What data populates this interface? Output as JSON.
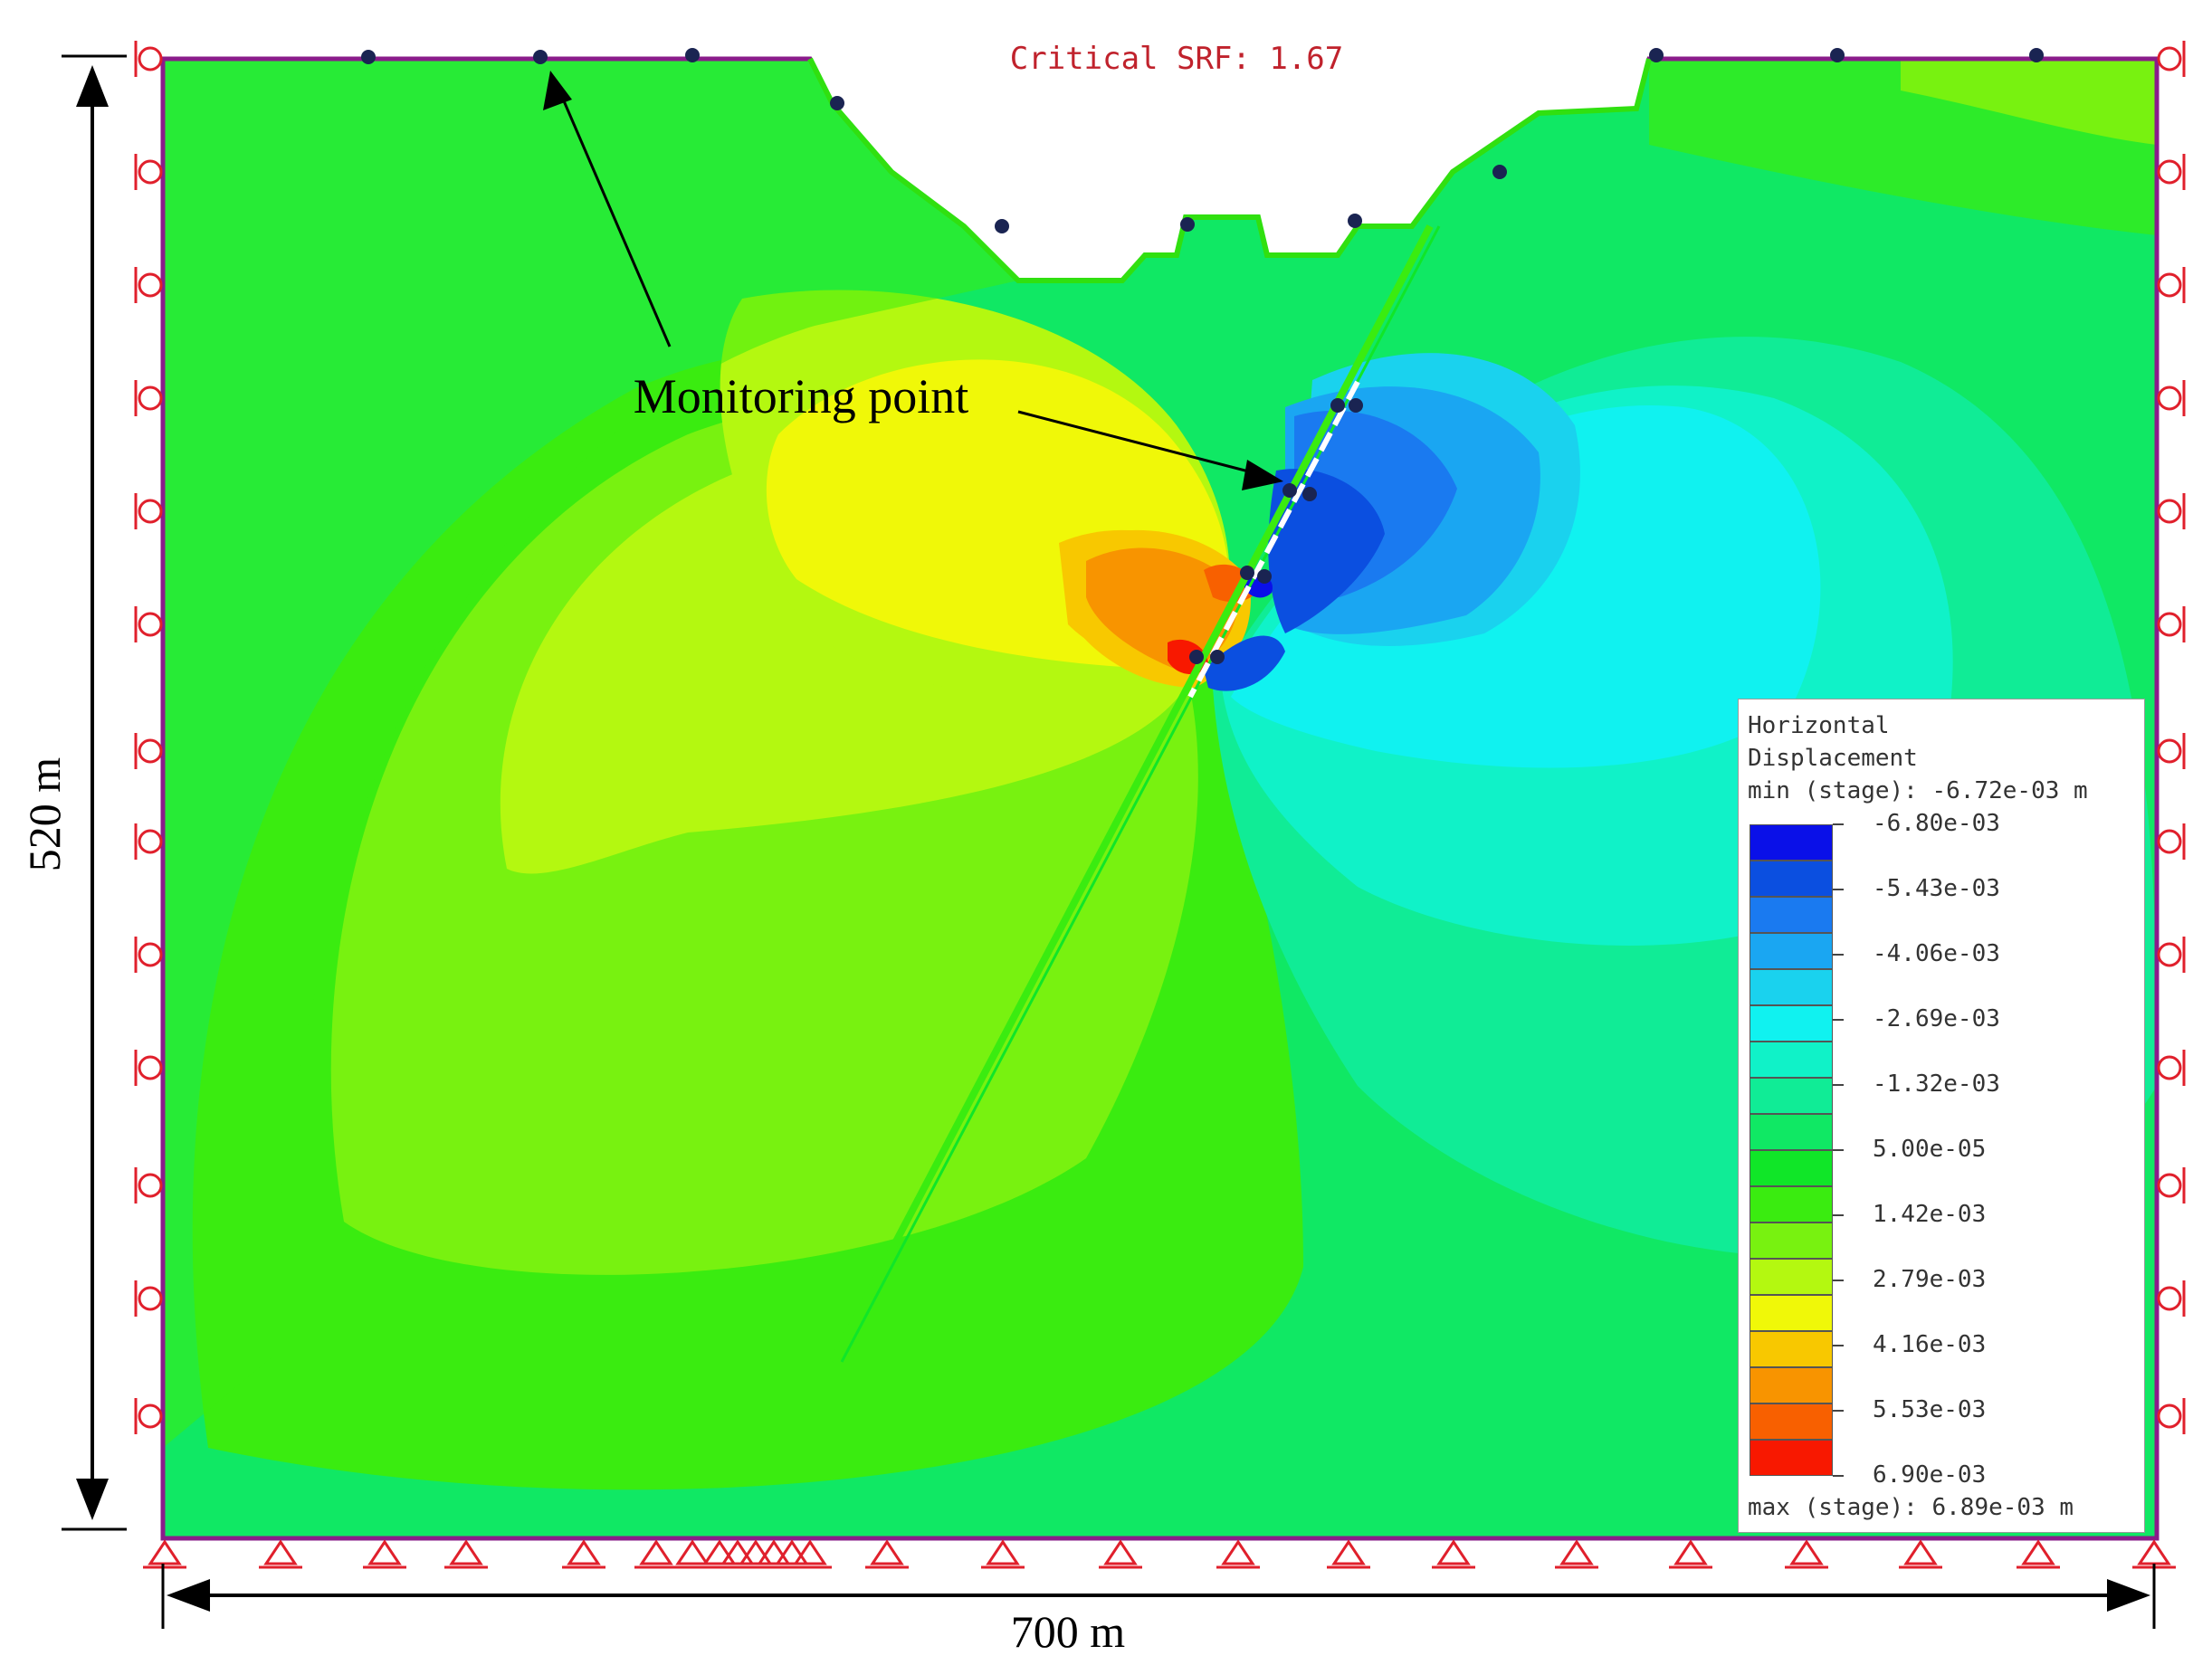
{
  "title": "Critical SRF: 1.67",
  "dimensions": {
    "height_label": "520 m",
    "width_label": "700 m"
  },
  "annotation": {
    "label": "Monitoring point"
  },
  "legend": {
    "title_line1": "Horizontal",
    "title_line2": "Displacement",
    "min_text": "min (stage): -6.72e-03 m",
    "max_text": "max (stage): 6.89e-03 m",
    "labels": [
      "-6.80e-03",
      "-5.43e-03",
      "-4.06e-03",
      "-2.69e-03",
      "-1.32e-03",
      "5.00e-05",
      "1.42e-03",
      "2.79e-03",
      "4.16e-03",
      "5.53e-03",
      "6.90e-03"
    ],
    "colors": [
      "#0a10e8",
      "#0b4fe0",
      "#1a7af0",
      "#1aa6f2",
      "#1ad2ee",
      "#10f2f0",
      "#10f2c8",
      "#10ec96",
      "#10e864",
      "#10e628",
      "#3aec10",
      "#78f210",
      "#b4f810",
      "#f0f808",
      "#f8c800",
      "#f89400",
      "#f86000",
      "#f81800"
    ]
  },
  "colors": {
    "boundary": "#8a1c8a",
    "support": "#e0202c",
    "point": "#1a2452",
    "title": "#c0222c"
  }
}
